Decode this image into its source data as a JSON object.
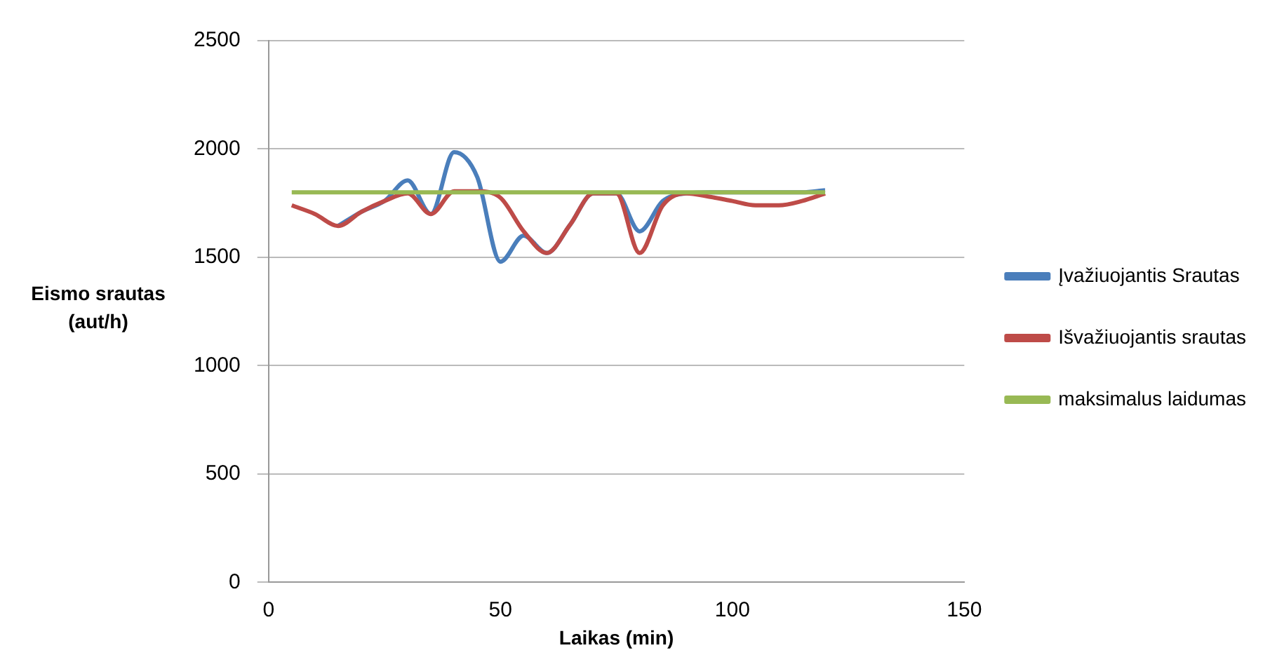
{
  "chart_data": {
    "type": "line",
    "xlabel": "Laikas (min)",
    "ylabel": "Eismo srautas (aut/h)",
    "x": [
      5,
      10,
      15,
      20,
      25,
      30,
      35,
      40,
      45,
      50,
      55,
      60,
      65,
      70,
      75,
      80,
      85,
      90,
      95,
      100,
      105,
      110,
      115,
      120
    ],
    "series": [
      {
        "name": "Įvažiuojantis Srautas",
        "color": "#4a7ebb",
        "values": [
          null,
          null,
          1645,
          1710,
          1760,
          1855,
          1700,
          1985,
          1870,
          1480,
          1600,
          1520,
          1650,
          1795,
          1795,
          1620,
          1760,
          1795,
          1800,
          1800,
          1800,
          1800,
          1800,
          1810
        ]
      },
      {
        "name": "Išvažiuojantis srautas",
        "color": "#be4b48",
        "values": [
          1740,
          1700,
          1645,
          1710,
          1760,
          1795,
          1700,
          1805,
          1805,
          1775,
          1620,
          1520,
          1650,
          1795,
          1795,
          1520,
          1740,
          1795,
          1780,
          1760,
          1740,
          1740,
          1760,
          1795
        ]
      },
      {
        "name": "maksimalus laidumas",
        "color": "#98b954",
        "values": [
          1800,
          1800,
          1800,
          1800,
          1800,
          1800,
          1800,
          1800,
          1800,
          1800,
          1800,
          1800,
          1800,
          1800,
          1800,
          1800,
          1800,
          1800,
          1800,
          1800,
          1800,
          1800,
          1800,
          1800
        ]
      }
    ],
    "xlim": [
      0,
      150
    ],
    "xticks": [
      0,
      50,
      100,
      150
    ],
    "ylim": [
      0,
      2500
    ],
    "yticks": [
      0,
      500,
      1000,
      1500,
      2000,
      2500
    ],
    "grid": "y",
    "legend": "right",
    "marker": "none",
    "line_style": "solid"
  }
}
